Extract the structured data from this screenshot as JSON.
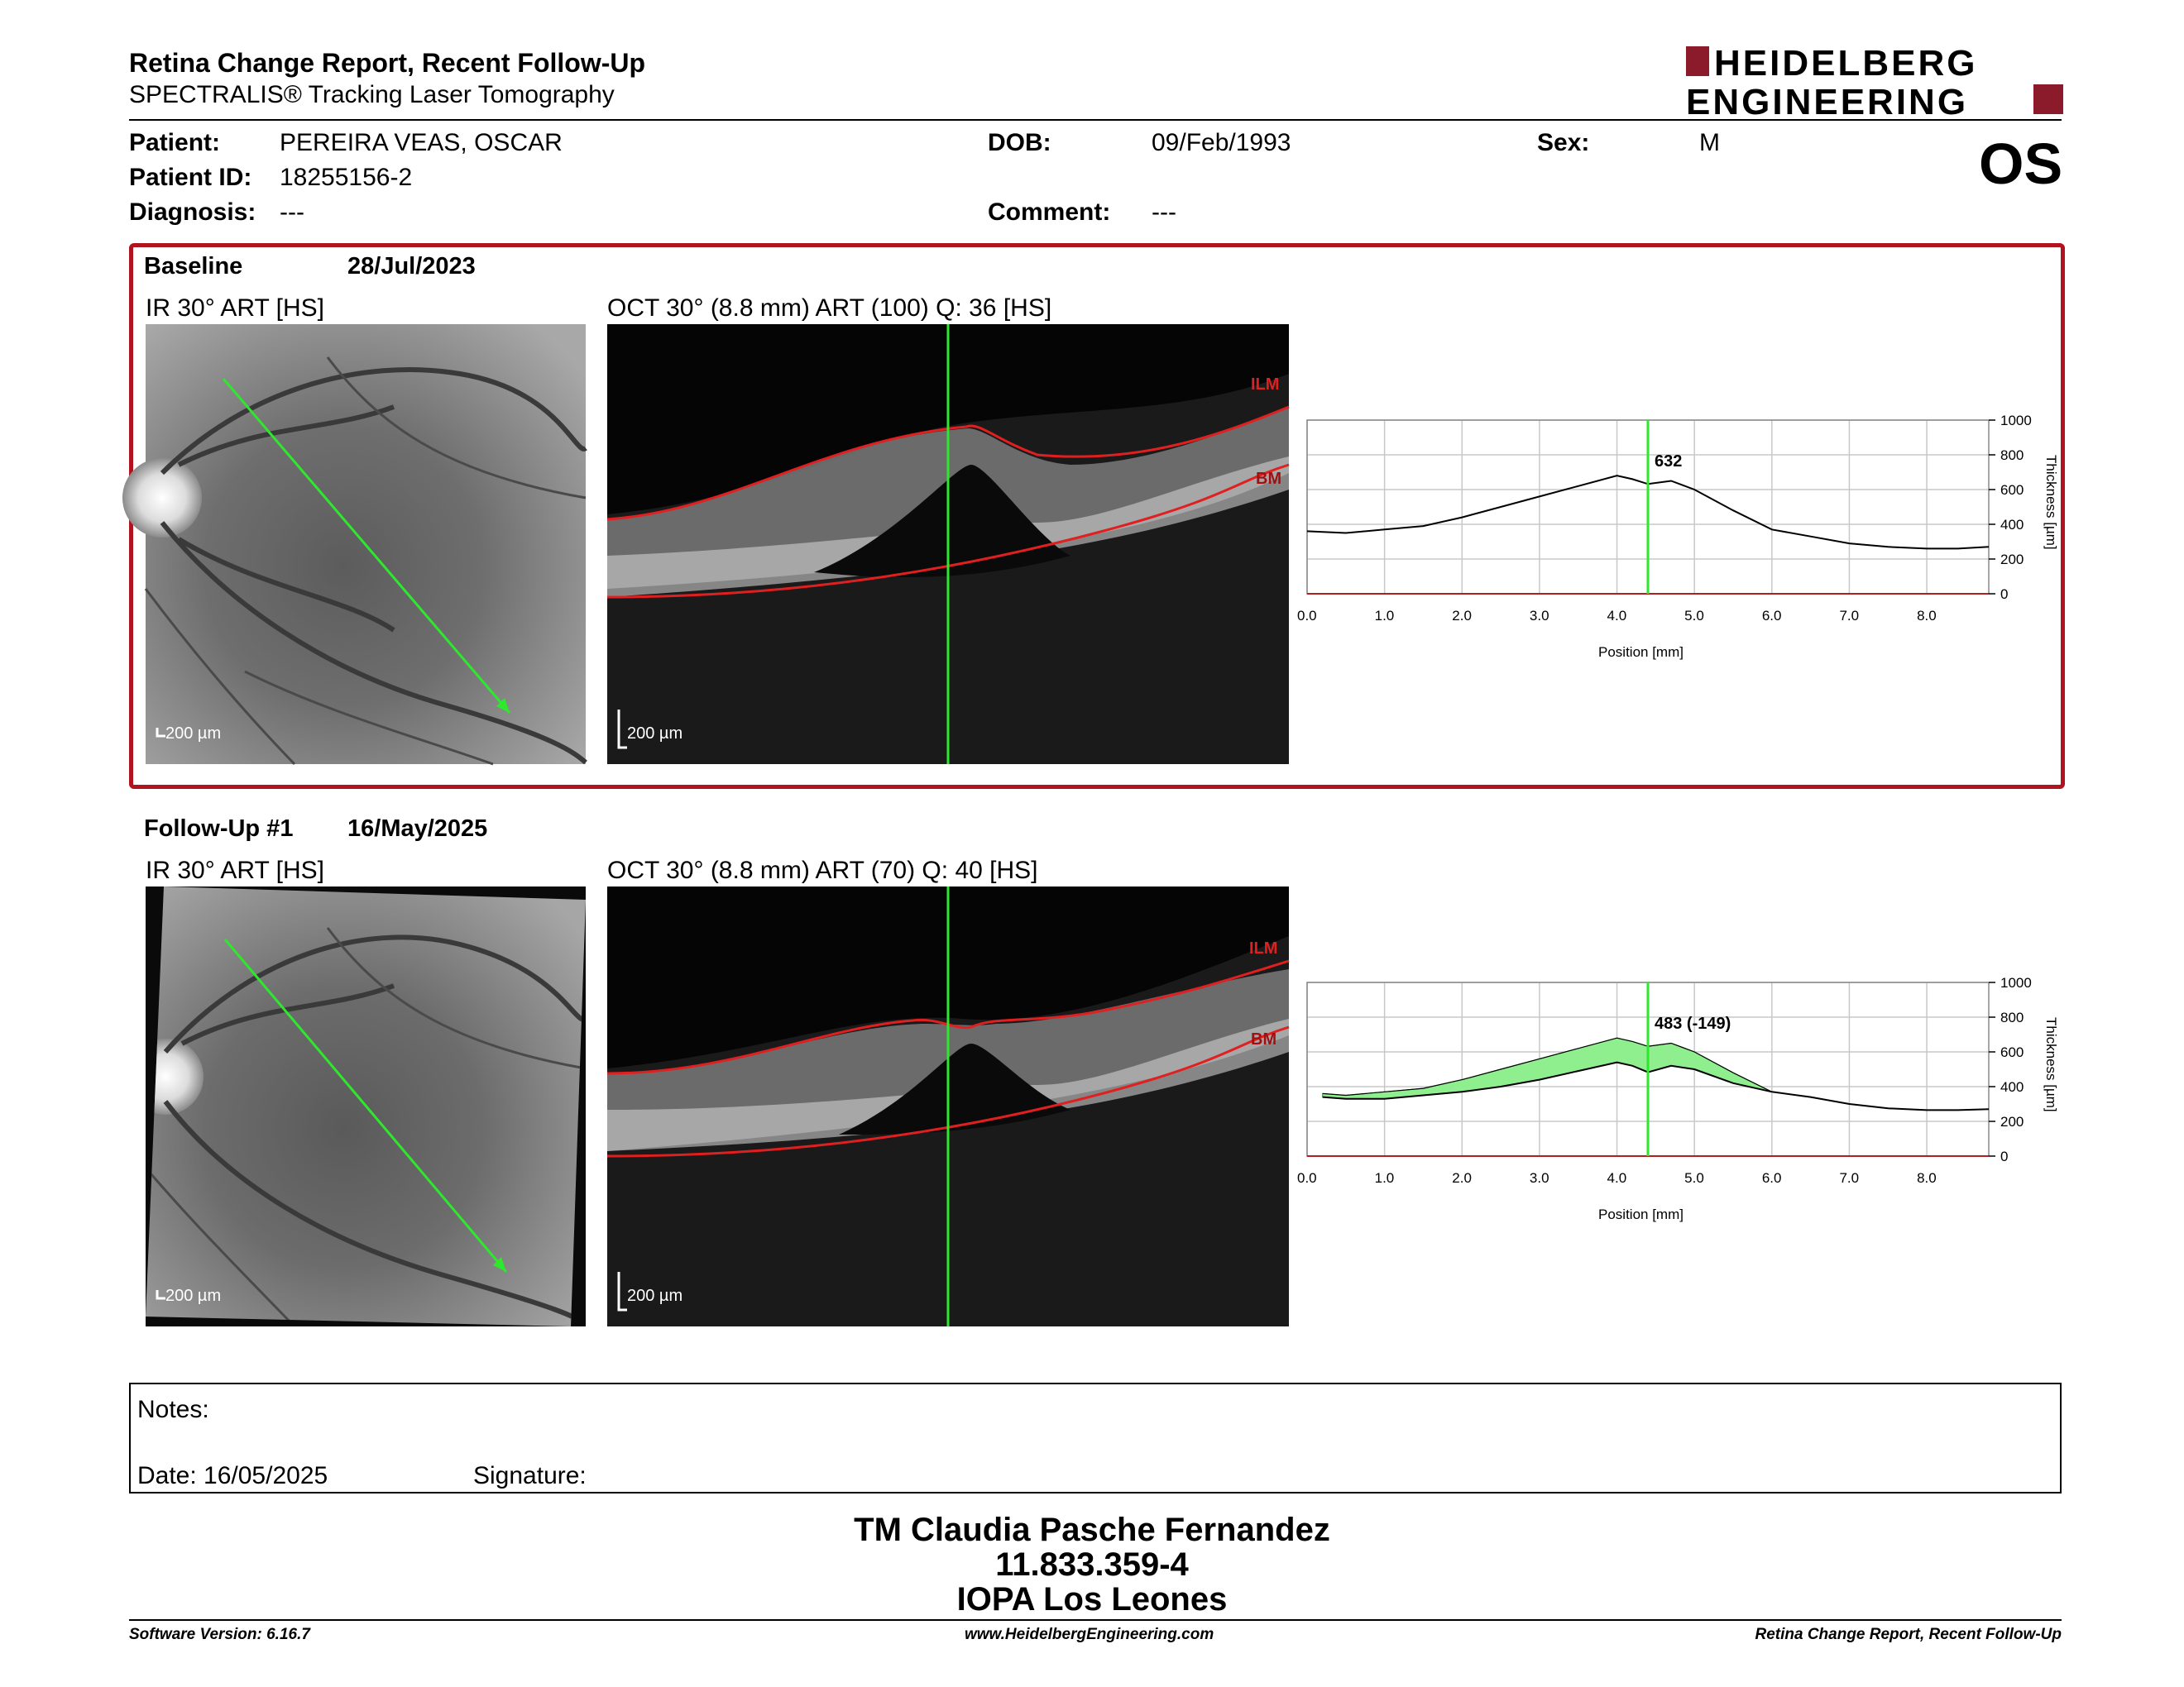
{
  "header": {
    "title": "Retina Change Report, Recent Follow-Up",
    "subtitle": "SPECTRALIS® Tracking Laser Tomography",
    "logo_line1": "HEIDELBERG",
    "logo_line2": "ENGINEERING",
    "eye": "OS"
  },
  "patient": {
    "patient_label": "Patient:",
    "patient_value": "PEREIRA VEAS, OSCAR",
    "id_label": "Patient ID:",
    "id_value": "18255156-2",
    "diagnosis_label": "Diagnosis:",
    "diagnosis_value": "---",
    "dob_label": "DOB:",
    "dob_value": "09/Feb/1993",
    "comment_label": "Comment:",
    "comment_value": "---",
    "sex_label": "Sex:",
    "sex_value": "M"
  },
  "baseline": {
    "name": "Baseline",
    "date": "28/Jul/2023",
    "ir_label": "IR 30° ART [HS]",
    "oct_label": "OCT 30° (8.8 mm) ART (100) Q: 36 [HS]",
    "scale_ir": "200 µm",
    "scale_oct": "200 µm",
    "ilm": "ILM",
    "bm": "BM"
  },
  "followup": {
    "name": "Follow-Up #1",
    "date": "16/May/2025",
    "ir_label": "IR 30° ART [HS]",
    "oct_label": "OCT 30° (8.8 mm) ART (70) Q: 40 [HS]",
    "scale_ir": "200 µm",
    "scale_oct": "200 µm",
    "ilm": "ILM",
    "bm": "BM"
  },
  "chart_data": [
    {
      "type": "line",
      "xlabel": "Position [mm]",
      "ylabel": "Thickness [µm]",
      "xlim": [
        0,
        8.8
      ],
      "ylim": [
        0,
        1000
      ],
      "xticks": [
        "0.0",
        "1.0",
        "2.0",
        "3.0",
        "4.0",
        "5.0",
        "6.0",
        "7.0",
        "8.0"
      ],
      "yticks": [
        "0",
        "200",
        "400",
        "600",
        "800",
        "1000"
      ],
      "cursor_x": 4.4,
      "cursor_label": "632",
      "series": [
        {
          "x": [
            0,
            0.5,
            1,
            1.5,
            2,
            2.5,
            3,
            3.5,
            4,
            4.2,
            4.4,
            4.7,
            5,
            5.5,
            6,
            6.5,
            7,
            7.5,
            8,
            8.4,
            8.8
          ],
          "y": [
            360,
            350,
            370,
            390,
            440,
            500,
            560,
            620,
            680,
            660,
            632,
            650,
            600,
            480,
            370,
            330,
            290,
            270,
            260,
            260,
            270
          ]
        }
      ]
    },
    {
      "type": "line",
      "xlabel": "Position [mm]",
      "ylabel": "Thickness [µm]",
      "xlim": [
        0,
        8.8
      ],
      "ylim": [
        0,
        1000
      ],
      "xticks": [
        "0.0",
        "1.0",
        "2.0",
        "3.0",
        "4.0",
        "5.0",
        "6.0",
        "7.0",
        "8.0"
      ],
      "yticks": [
        "0",
        "200",
        "400",
        "600",
        "800",
        "1000"
      ],
      "cursor_x": 4.4,
      "cursor_label": "483 (-149)",
      "series": [
        {
          "x": [
            0.2,
            0.5,
            1,
            1.5,
            2,
            2.5,
            3,
            3.5,
            4,
            4.2,
            4.4,
            4.7,
            5,
            5.5,
            6,
            6.5,
            7,
            7.5,
            8,
            8.4,
            8.8
          ],
          "y": [
            340,
            330,
            330,
            350,
            370,
            400,
            440,
            490,
            540,
            520,
            483,
            520,
            500,
            420,
            370,
            340,
            300,
            275,
            265,
            265,
            270
          ]
        },
        {
          "x": [
            0.2,
            0.5,
            1,
            1.5,
            2,
            2.5,
            3,
            3.5,
            4,
            4.2,
            4.4,
            4.7,
            5,
            5.5,
            6,
            6.5,
            7,
            7.5,
            8,
            8.4,
            8.8
          ],
          "y": [
            360,
            350,
            370,
            390,
            440,
            500,
            560,
            620,
            680,
            660,
            632,
            650,
            600,
            480,
            370,
            340,
            300,
            275,
            265,
            265,
            270
          ]
        }
      ]
    }
  ],
  "notes": {
    "notes_label": "Notes:",
    "date_label": "Date: 16/05/2025",
    "signature_label": "Signature:"
  },
  "signature": {
    "line1": "TM Claudia Pasche Fernandez",
    "line2": "11.833.359-4",
    "line3": "IOPA Los Leones"
  },
  "footer": {
    "left": "Software Version: 6.16.7",
    "center": "www.HeidelbergEngineering.com",
    "right": "Retina Change Report, Recent Follow-Up"
  }
}
